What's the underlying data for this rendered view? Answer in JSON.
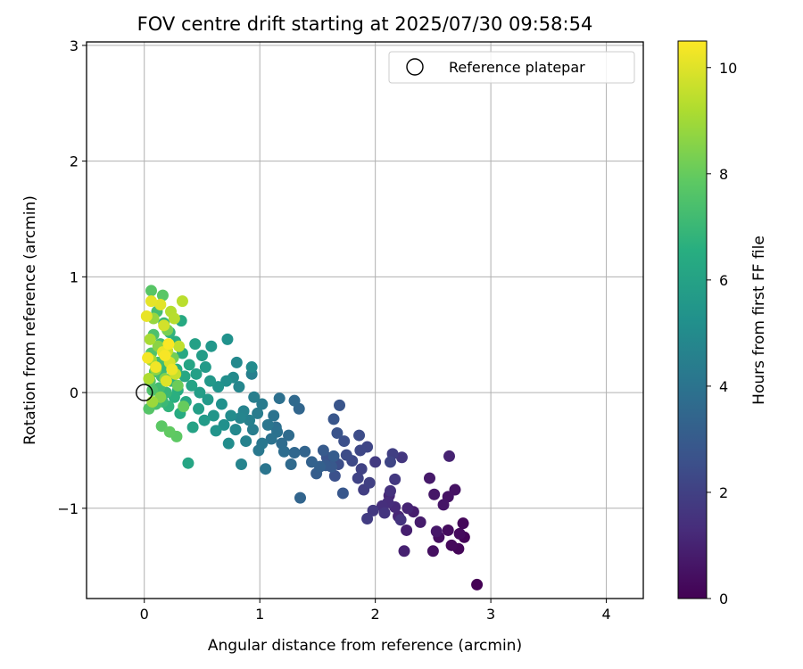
{
  "chart_data": {
    "type": "scatter",
    "title": "FOV centre drift starting at 2025/07/30 09:58:54",
    "xlabel": "Angular distance from reference (arcmin)",
    "ylabel": "Rotation from reference (arcmin)",
    "xlim": [
      -0.5,
      4.32
    ],
    "ylim": [
      -1.78,
      3.03
    ],
    "xticks": [
      0,
      1,
      2,
      3,
      4
    ],
    "xtick_labels": [
      "0",
      "1",
      "2",
      "3",
      "4"
    ],
    "yticks": [
      -1,
      0,
      1,
      2,
      3
    ],
    "ytick_labels": [
      "−1",
      "0",
      "1",
      "2",
      "3"
    ],
    "grid": true,
    "legend": {
      "placement": "top-right",
      "entries": [
        "Reference platepar"
      ]
    },
    "reference_point": {
      "x": 0,
      "y": 0
    },
    "colorbar": {
      "label": "Hours from first FF file",
      "range": [
        0,
        10.5
      ],
      "ticks": [
        0,
        2,
        4,
        6,
        8,
        10
      ],
      "tick_labels": [
        "0",
        "2",
        "4",
        "6",
        "8",
        "10"
      ],
      "colormap": "viridis"
    },
    "series": [
      {
        "value_key": "hours",
        "points": [
          {
            "x": 2.88,
            "y": -1.66,
            "hours": 0.0
          },
          {
            "x": 2.77,
            "y": -1.25,
            "hours": 0.1
          },
          {
            "x": 2.72,
            "y": -1.35,
            "hours": 0.15
          },
          {
            "x": 2.76,
            "y": -1.13,
            "hours": 0.2
          },
          {
            "x": 2.66,
            "y": -1.32,
            "hours": 0.25
          },
          {
            "x": 2.73,
            "y": -1.22,
            "hours": 0.3
          },
          {
            "x": 2.63,
            "y": -1.19,
            "hours": 0.35
          },
          {
            "x": 2.55,
            "y": -1.25,
            "hours": 0.4
          },
          {
            "x": 2.5,
            "y": -1.37,
            "hours": 0.45
          },
          {
            "x": 2.69,
            "y": -0.84,
            "hours": 0.5
          },
          {
            "x": 2.63,
            "y": -0.9,
            "hours": 0.55
          },
          {
            "x": 2.59,
            "y": -0.97,
            "hours": 0.6
          },
          {
            "x": 2.51,
            "y": -0.88,
            "hours": 0.65
          },
          {
            "x": 2.53,
            "y": -1.2,
            "hours": 0.7
          },
          {
            "x": 2.47,
            "y": -0.74,
            "hours": 0.75
          },
          {
            "x": 2.39,
            "y": -1.12,
            "hours": 0.8
          },
          {
            "x": 2.33,
            "y": -1.03,
            "hours": 0.85
          },
          {
            "x": 2.27,
            "y": -1.19,
            "hours": 0.9
          },
          {
            "x": 2.25,
            "y": -1.37,
            "hours": 0.95
          },
          {
            "x": 2.64,
            "y": -0.55,
            "hours": 1.0
          },
          {
            "x": 2.28,
            "y": -1.0,
            "hours": 1.05
          },
          {
            "x": 2.2,
            "y": -1.07,
            "hours": 1.1
          },
          {
            "x": 2.12,
            "y": -0.89,
            "hours": 1.15
          },
          {
            "x": 2.17,
            "y": -0.99,
            "hours": 1.2
          },
          {
            "x": 2.11,
            "y": -0.95,
            "hours": 1.3
          },
          {
            "x": 2.06,
            "y": -0.98,
            "hours": 1.4
          },
          {
            "x": 2.13,
            "y": -0.85,
            "hours": 1.5
          },
          {
            "x": 2.22,
            "y": -1.1,
            "hours": 1.55
          },
          {
            "x": 2.08,
            "y": -1.04,
            "hours": 1.6
          },
          {
            "x": 2.23,
            "y": -0.56,
            "hours": 1.65
          },
          {
            "x": 2.17,
            "y": -0.75,
            "hours": 1.7
          },
          {
            "x": 1.98,
            "y": -1.02,
            "hours": 1.75
          },
          {
            "x": 2.0,
            "y": -0.6,
            "hours": 1.8
          },
          {
            "x": 1.93,
            "y": -1.09,
            "hours": 1.85
          },
          {
            "x": 1.9,
            "y": -0.84,
            "hours": 1.9
          },
          {
            "x": 2.15,
            "y": -0.53,
            "hours": 1.95
          },
          {
            "x": 1.95,
            "y": -0.78,
            "hours": 2.0
          },
          {
            "x": 1.88,
            "y": -0.66,
            "hours": 2.05
          },
          {
            "x": 1.85,
            "y": -0.74,
            "hours": 2.1
          },
          {
            "x": 2.13,
            "y": -0.6,
            "hours": 2.15
          },
          {
            "x": 1.93,
            "y": -0.47,
            "hours": 2.2
          },
          {
            "x": 1.87,
            "y": -0.5,
            "hours": 2.25
          },
          {
            "x": 1.8,
            "y": -0.59,
            "hours": 2.3
          },
          {
            "x": 1.75,
            "y": -0.54,
            "hours": 2.4
          },
          {
            "x": 1.86,
            "y": -0.37,
            "hours": 2.45
          },
          {
            "x": 1.68,
            "y": -0.62,
            "hours": 2.5
          },
          {
            "x": 1.73,
            "y": -0.42,
            "hours": 2.55
          },
          {
            "x": 1.65,
            "y": -0.72,
            "hours": 2.6
          },
          {
            "x": 1.58,
            "y": -0.56,
            "hours": 2.65
          },
          {
            "x": 1.67,
            "y": -0.35,
            "hours": 2.7
          },
          {
            "x": 1.69,
            "y": -0.11,
            "hours": 2.75
          },
          {
            "x": 1.64,
            "y": -0.23,
            "hours": 2.8
          },
          {
            "x": 1.72,
            "y": -0.87,
            "hours": 2.85
          },
          {
            "x": 1.62,
            "y": -0.64,
            "hours": 2.9
          },
          {
            "x": 1.57,
            "y": -0.63,
            "hours": 2.95
          },
          {
            "x": 1.55,
            "y": -0.5,
            "hours": 3.0
          },
          {
            "x": 1.64,
            "y": -0.55,
            "hours": 3.05
          },
          {
            "x": 1.49,
            "y": -0.7,
            "hours": 3.1
          },
          {
            "x": 1.52,
            "y": -0.64,
            "hours": 3.2
          },
          {
            "x": 1.45,
            "y": -0.6,
            "hours": 3.3
          },
          {
            "x": 1.39,
            "y": -0.51,
            "hours": 3.35
          },
          {
            "x": 1.35,
            "y": -0.91,
            "hours": 3.4
          },
          {
            "x": 1.34,
            "y": -0.14,
            "hours": 3.45
          },
          {
            "x": 1.3,
            "y": -0.52,
            "hours": 3.5
          },
          {
            "x": 1.3,
            "y": -0.07,
            "hours": 3.55
          },
          {
            "x": 1.27,
            "y": -0.62,
            "hours": 3.6
          },
          {
            "x": 1.25,
            "y": -0.37,
            "hours": 3.65
          },
          {
            "x": 1.19,
            "y": -0.44,
            "hours": 3.7
          },
          {
            "x": 1.21,
            "y": -0.51,
            "hours": 3.75
          },
          {
            "x": 1.14,
            "y": -0.3,
            "hours": 3.8
          },
          {
            "x": 1.17,
            "y": -0.05,
            "hours": 3.85
          },
          {
            "x": 1.15,
            "y": -0.34,
            "hours": 3.9
          },
          {
            "x": 1.1,
            "y": -0.4,
            "hours": 3.95
          },
          {
            "x": 1.12,
            "y": -0.2,
            "hours": 4.0
          },
          {
            "x": 1.05,
            "y": -0.66,
            "hours": 4.05
          },
          {
            "x": 1.07,
            "y": -0.28,
            "hours": 4.1
          },
          {
            "x": 1.02,
            "y": -0.44,
            "hours": 4.15
          },
          {
            "x": 0.99,
            "y": -0.5,
            "hours": 4.2
          },
          {
            "x": 1.02,
            "y": -0.1,
            "hours": 4.3
          },
          {
            "x": 0.98,
            "y": -0.18,
            "hours": 4.35
          },
          {
            "x": 0.94,
            "y": -0.32,
            "hours": 4.4
          },
          {
            "x": 0.95,
            "y": -0.04,
            "hours": 4.45
          },
          {
            "x": 0.93,
            "y": 0.16,
            "hours": 4.5
          },
          {
            "x": 0.91,
            "y": -0.24,
            "hours": 4.55
          },
          {
            "x": 0.88,
            "y": -0.42,
            "hours": 4.6
          },
          {
            "x": 0.86,
            "y": -0.16,
            "hours": 4.65
          },
          {
            "x": 0.84,
            "y": -0.62,
            "hours": 4.7
          },
          {
            "x": 0.83,
            "y": -0.22,
            "hours": 4.75
          },
          {
            "x": 0.82,
            "y": 0.05,
            "hours": 4.8
          },
          {
            "x": 0.79,
            "y": -0.32,
            "hours": 4.85
          },
          {
            "x": 0.8,
            "y": 0.26,
            "hours": 4.9
          },
          {
            "x": 0.77,
            "y": 0.13,
            "hours": 4.95
          },
          {
            "x": 0.93,
            "y": 0.22,
            "hours": 5.0
          },
          {
            "x": 0.75,
            "y": -0.2,
            "hours": 5.05
          },
          {
            "x": 0.73,
            "y": -0.44,
            "hours": 5.1
          },
          {
            "x": 0.71,
            "y": 0.1,
            "hours": 5.15
          },
          {
            "x": 0.69,
            "y": -0.28,
            "hours": 5.2
          },
          {
            "x": 0.67,
            "y": -0.1,
            "hours": 5.25
          },
          {
            "x": 0.72,
            "y": 0.46,
            "hours": 5.3
          },
          {
            "x": 0.64,
            "y": 0.05,
            "hours": 5.35
          },
          {
            "x": 0.62,
            "y": -0.33,
            "hours": 5.4
          },
          {
            "x": 0.6,
            "y": -0.2,
            "hours": 5.45
          },
          {
            "x": 0.58,
            "y": 0.4,
            "hours": 5.5
          },
          {
            "x": 0.57,
            "y": 0.1,
            "hours": 5.55
          },
          {
            "x": 0.55,
            "y": -0.06,
            "hours": 5.6
          },
          {
            "x": 0.53,
            "y": 0.22,
            "hours": 5.65
          },
          {
            "x": 0.52,
            "y": -0.24,
            "hours": 5.7
          },
          {
            "x": 0.5,
            "y": 0.32,
            "hours": 5.75
          },
          {
            "x": 0.48,
            "y": 0.0,
            "hours": 5.8
          },
          {
            "x": 0.47,
            "y": -0.14,
            "hours": 5.85
          },
          {
            "x": 0.45,
            "y": 0.16,
            "hours": 5.9
          },
          {
            "x": 0.44,
            "y": 0.42,
            "hours": 5.95
          },
          {
            "x": 0.42,
            "y": -0.3,
            "hours": 6.0
          },
          {
            "x": 0.41,
            "y": 0.06,
            "hours": 6.05
          },
          {
            "x": 0.39,
            "y": 0.24,
            "hours": 6.1
          },
          {
            "x": 0.38,
            "y": -0.61,
            "hours": 6.15
          },
          {
            "x": 0.36,
            "y": -0.08,
            "hours": 6.2
          },
          {
            "x": 0.35,
            "y": 0.14,
            "hours": 6.25
          },
          {
            "x": 0.33,
            "y": 0.34,
            "hours": 6.3
          },
          {
            "x": 0.32,
            "y": 0.62,
            "hours": 6.35
          },
          {
            "x": 0.31,
            "y": -0.18,
            "hours": 6.4
          },
          {
            "x": 0.29,
            "y": 0.02,
            "hours": 6.45
          },
          {
            "x": 0.28,
            "y": 0.2,
            "hours": 6.5
          },
          {
            "x": 0.27,
            "y": 0.44,
            "hours": 6.55
          },
          {
            "x": 0.26,
            "y": -0.04,
            "hours": 6.6
          },
          {
            "x": 0.24,
            "y": 0.3,
            "hours": 6.65
          },
          {
            "x": 0.23,
            "y": 0.1,
            "hours": 6.7
          },
          {
            "x": 0.22,
            "y": 0.52,
            "hours": 6.75
          },
          {
            "x": 0.21,
            "y": -0.12,
            "hours": 6.8
          },
          {
            "x": 0.2,
            "y": 0.36,
            "hours": 6.85
          },
          {
            "x": 0.19,
            "y": 0.0,
            "hours": 6.9
          },
          {
            "x": 0.18,
            "y": 0.22,
            "hours": 6.95
          },
          {
            "x": 0.17,
            "y": 0.6,
            "hours": 7.0
          },
          {
            "x": 0.16,
            "y": -0.08,
            "hours": 7.05
          },
          {
            "x": 0.15,
            "y": 0.14,
            "hours": 7.1
          },
          {
            "x": 0.14,
            "y": 0.42,
            "hours": 7.15
          },
          {
            "x": 0.13,
            "y": 0.04,
            "hours": 7.2
          },
          {
            "x": 0.12,
            "y": 0.26,
            "hours": 7.25
          },
          {
            "x": 0.11,
            "y": 0.7,
            "hours": 7.3
          },
          {
            "x": 0.1,
            "y": -0.1,
            "hours": 7.35
          },
          {
            "x": 0.09,
            "y": 0.18,
            "hours": 7.4
          },
          {
            "x": 0.08,
            "y": 0.5,
            "hours": 7.45
          },
          {
            "x": 0.07,
            "y": 0.02,
            "hours": 7.5
          },
          {
            "x": 0.06,
            "y": 0.34,
            "hours": 7.55
          },
          {
            "x": 0.05,
            "y": 0.1,
            "hours": 7.6
          },
          {
            "x": 0.04,
            "y": -0.14,
            "hours": 7.65
          },
          {
            "x": 0.06,
            "y": 0.88,
            "hours": 7.7
          },
          {
            "x": 0.16,
            "y": 0.84,
            "hours": 7.75
          },
          {
            "x": 0.15,
            "y": -0.29,
            "hours": 7.8
          },
          {
            "x": 0.28,
            "y": -0.38,
            "hours": 7.85
          },
          {
            "x": 0.22,
            "y": -0.34,
            "hours": 7.9
          },
          {
            "x": 0.34,
            "y": -0.12,
            "hours": 8.0
          },
          {
            "x": 0.29,
            "y": 0.06,
            "hours": 8.1
          },
          {
            "x": 0.25,
            "y": 0.3,
            "hours": 8.2
          },
          {
            "x": 0.2,
            "y": 0.54,
            "hours": 8.3
          },
          {
            "x": 0.18,
            "y": 0.12,
            "hours": 8.4
          },
          {
            "x": 0.14,
            "y": -0.04,
            "hours": 8.5
          },
          {
            "x": 0.12,
            "y": 0.4,
            "hours": 8.6
          },
          {
            "x": 0.1,
            "y": 0.2,
            "hours": 8.7
          },
          {
            "x": 0.08,
            "y": 0.64,
            "hours": 8.8
          },
          {
            "x": 0.07,
            "y": -0.08,
            "hours": 8.9
          },
          {
            "x": 0.06,
            "y": 0.28,
            "hours": 9.0
          },
          {
            "x": 0.05,
            "y": 0.46,
            "hours": 9.1
          },
          {
            "x": 0.04,
            "y": 0.12,
            "hours": 9.2
          },
          {
            "x": 0.23,
            "y": 0.7,
            "hours": 9.3
          },
          {
            "x": 0.26,
            "y": 0.64,
            "hours": 9.35
          },
          {
            "x": 0.33,
            "y": 0.79,
            "hours": 9.4
          },
          {
            "x": 0.3,
            "y": 0.4,
            "hours": 9.5
          },
          {
            "x": 0.27,
            "y": 0.16,
            "hours": 9.6
          },
          {
            "x": 0.2,
            "y": 0.36,
            "hours": 9.7
          },
          {
            "x": 0.17,
            "y": 0.58,
            "hours": 9.8
          },
          {
            "x": 0.22,
            "y": 0.26,
            "hours": 9.9
          },
          {
            "x": 0.19,
            "y": 0.1,
            "hours": 10.0
          },
          {
            "x": 0.14,
            "y": 0.76,
            "hours": 10.05
          },
          {
            "x": 0.06,
            "y": 0.79,
            "hours": 10.1
          },
          {
            "x": 0.02,
            "y": 0.66,
            "hours": 10.15
          },
          {
            "x": 0.16,
            "y": 0.35,
            "hours": 10.2
          },
          {
            "x": 0.24,
            "y": 0.2,
            "hours": 10.25
          },
          {
            "x": 0.1,
            "y": 0.22,
            "hours": 10.3
          },
          {
            "x": 0.03,
            "y": 0.3,
            "hours": 10.35
          },
          {
            "x": 0.18,
            "y": 0.32,
            "hours": 10.4
          },
          {
            "x": 0.21,
            "y": 0.42,
            "hours": 10.45
          }
        ]
      }
    ]
  }
}
